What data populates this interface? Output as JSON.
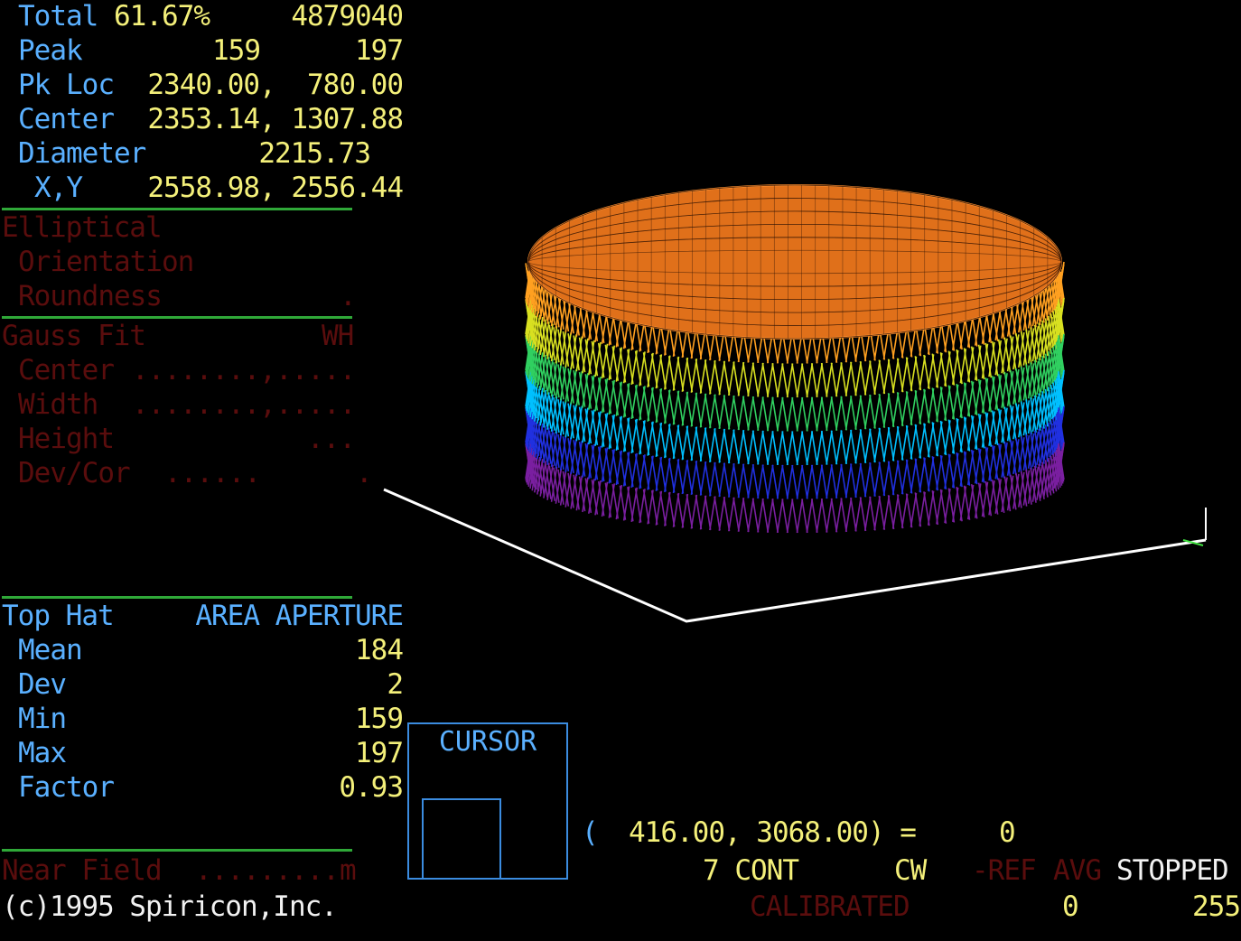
{
  "stats": {
    "total_label": "Total",
    "total_pct": "61.67%",
    "total_value": "4879040",
    "peak_label": "Peak",
    "peak_a": "159",
    "peak_b": "197",
    "pkloc_label": "Pk Loc",
    "pkloc_value": "2340.00,  780.00",
    "center_label": "Center",
    "center_value": "2353.14, 1307.88",
    "diameter_label": "Diameter",
    "diameter_value": "2215.73",
    "xy_label": "X,Y",
    "xy_value": "2558.98, 2556.44"
  },
  "elliptical": {
    "title": "Elliptical",
    "orientation_label": "Orientation",
    "roundness_label": "Roundness",
    "roundness_value": "."
  },
  "gauss": {
    "title": "Gauss Fit",
    "mode": "WH",
    "center_label": "Center",
    "center_value": "........,.....",
    "width_label": "Width",
    "width_value": "........,.....",
    "height_label": "Height",
    "height_value": "...",
    "devcor_label": "Dev/Cor",
    "devcor_value": "......      ."
  },
  "tophat": {
    "title": "Top Hat",
    "mode": "AREA APERTURE",
    "mean_label": "Mean",
    "mean_value": "184",
    "dev_label": "Dev",
    "dev_value": "2",
    "min_label": "Min",
    "min_value": "159",
    "max_label": "Max",
    "max_value": "197",
    "factor_label": "Factor",
    "factor_value": "0.93"
  },
  "nearfield": {
    "label": "Near Field",
    "dots": ".........",
    "unit": "m"
  },
  "copyright": "(c)1995 Spiricon,Inc.",
  "cursor": {
    "label": "CURSOR",
    "open": "(",
    "coords": "416.00, 3068.00) =",
    "value": "0"
  },
  "status": {
    "mode": "7 CONT",
    "cw": "CW",
    "ref": "-REF",
    "avg": "AVG",
    "state": "STOPPED",
    "calibrated": "CALIBRATED",
    "scale_min": "0",
    "scale_max": "255"
  },
  "plot_3d": {
    "type": "surface-wireframe",
    "description_colors": [
      "#7a1fa0",
      "#2030e0",
      "#00c0ff",
      "#40e040",
      "#e0e020",
      "#ff8020"
    ]
  }
}
